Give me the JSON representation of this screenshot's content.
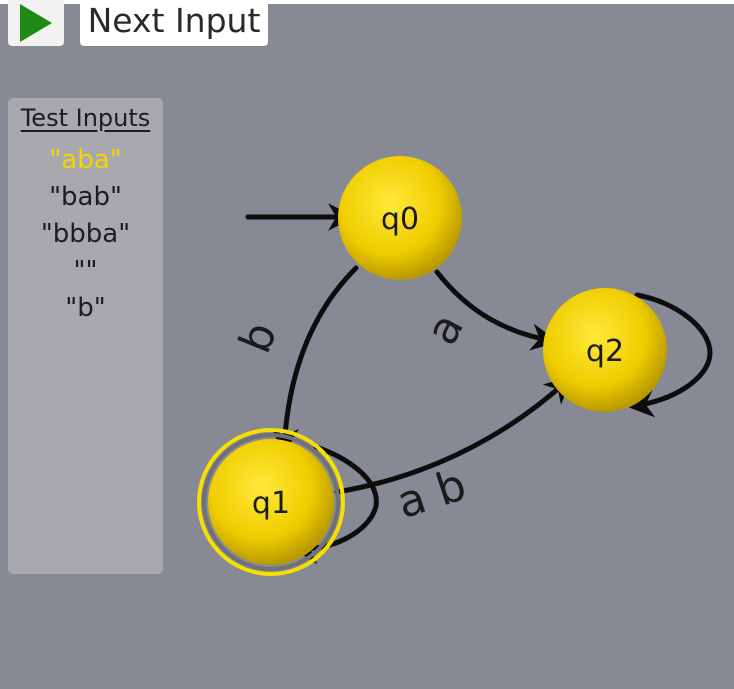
{
  "toolbar": {
    "play_icon": "play-icon",
    "next_input_label": "Next Input"
  },
  "test_inputs": {
    "title": "Test Inputs",
    "items": [
      "\"aba\"",
      "\"bab\"",
      "\"bbba\"",
      "\"\"",
      "\"b\""
    ],
    "active_index": 0,
    "active_color": "#f5d400"
  },
  "automaton": {
    "start_state": "q0",
    "states": [
      {
        "id": "q0",
        "label": "q0",
        "accepting": false
      },
      {
        "id": "q1",
        "label": "q1",
        "accepting": true
      },
      {
        "id": "q2",
        "label": "q2",
        "accepting": false
      }
    ],
    "transitions": [
      {
        "from": "q0",
        "to": "q1",
        "label": "b"
      },
      {
        "from": "q0",
        "to": "q2",
        "label": "a"
      },
      {
        "from": "q1",
        "to": "q2",
        "label": "a b"
      },
      {
        "from": "q1",
        "to": "q1",
        "label": ""
      },
      {
        "from": "q2",
        "to": "q2",
        "label": ""
      }
    ],
    "state_color": "#f0cd00",
    "accept_ring_color": "#f7e000"
  }
}
